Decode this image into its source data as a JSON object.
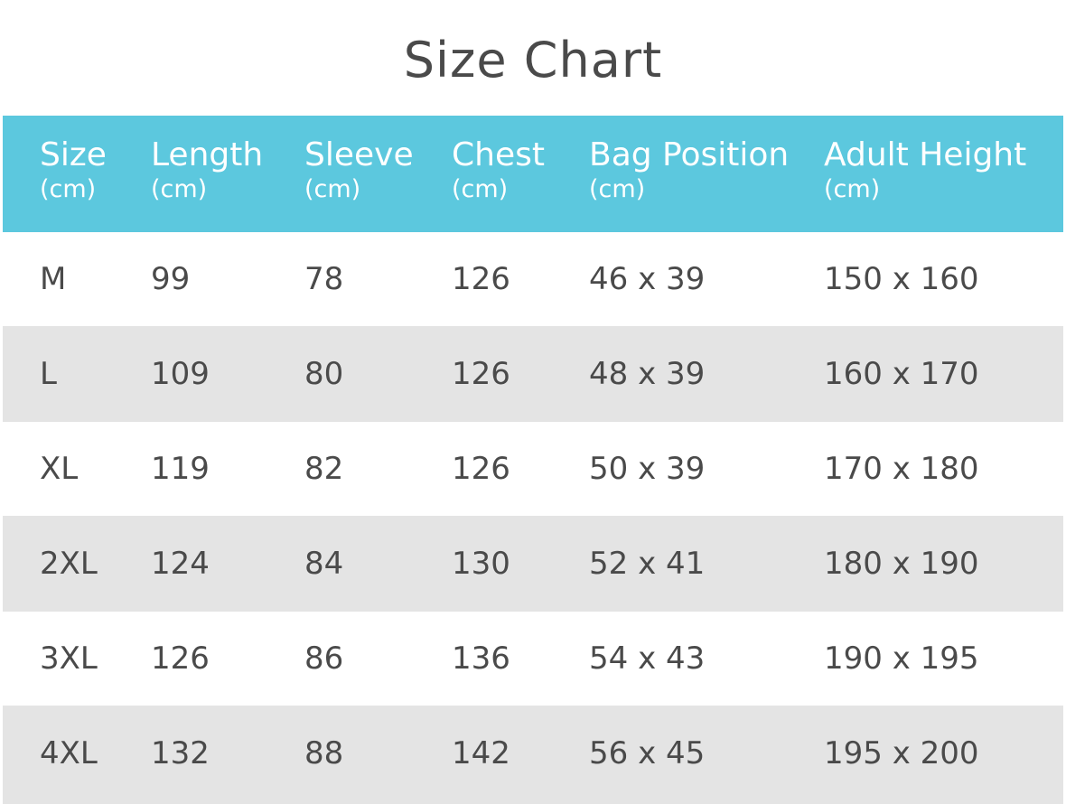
{
  "title": "Size Chart",
  "colors": {
    "header_background": "#5cc8de",
    "header_text": "#ffffff",
    "row_light": "#ffffff",
    "row_dark": "#e4e4e4",
    "body_text": "#4a4a4a"
  },
  "table": {
    "columns": [
      {
        "name": "Size",
        "unit": "(cm)"
      },
      {
        "name": "Length",
        "unit": "(cm)"
      },
      {
        "name": "Sleeve",
        "unit": "(cm)"
      },
      {
        "name": "Chest",
        "unit": "(cm)"
      },
      {
        "name": "Bag Position",
        "unit": "(cm)"
      },
      {
        "name": "Adult Height",
        "unit": "(cm)"
      }
    ],
    "rows": [
      [
        "M",
        "99",
        "78",
        "126",
        "46 x 39",
        "150 x 160"
      ],
      [
        "L",
        "109",
        "80",
        "126",
        "48 x 39",
        "160 x 170"
      ],
      [
        "XL",
        "119",
        "82",
        "126",
        "50 x 39",
        "170 x 180"
      ],
      [
        "2XL",
        "124",
        "84",
        "130",
        "52 x 41",
        "180 x 190"
      ],
      [
        "3XL",
        "126",
        "86",
        "136",
        "54 x 43",
        "190 x 195"
      ],
      [
        "4XL",
        "132",
        "88",
        "142",
        "56 x 45",
        "195 x 200"
      ]
    ]
  }
}
